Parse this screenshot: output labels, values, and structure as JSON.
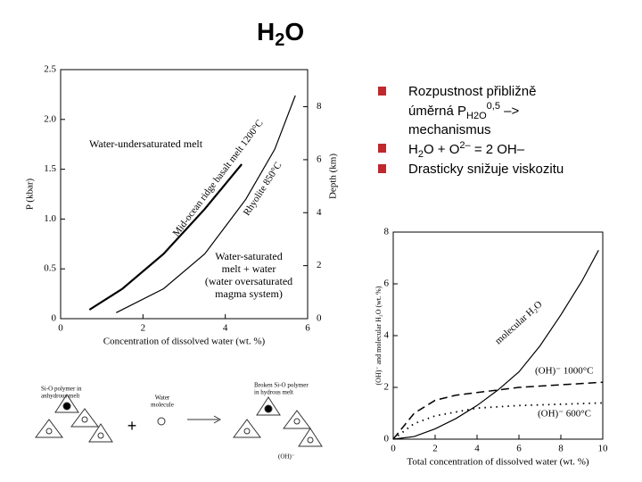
{
  "slide": {
    "title": [
      "H",
      "2",
      "O"
    ],
    "bullets": [
      {
        "line1": "Rozpustnost přibližně",
        "line2": "úměrná P",
        "sub": "H2O",
        "sup": "0,5",
        "tail": " –>",
        "line3": "mechanismus"
      },
      {
        "a": "H",
        "b": "2",
        "c": "O + O",
        "d": "2–",
        "e": " = 2 OH–"
      },
      {
        "text": "Drasticky snižuje viskozitu"
      }
    ]
  },
  "diagram": {
    "labels": [
      "Si-O polymer in",
      "anhydrous melt",
      "Water",
      "molecule",
      "Broken Si-O polymer",
      "in hydrous melt",
      "(OH)⁻",
      "+"
    ]
  },
  "chart_data": [
    {
      "type": "line",
      "xlabel": "Concentration of dissolved water (wt. %)",
      "ylabel": "P (kbar)",
      "y2label": "Depth (km)",
      "xlim": [
        0,
        6
      ],
      "xticks": [
        0,
        2,
        4,
        6
      ],
      "ylim": [
        0,
        2.5
      ],
      "yticks": [
        0,
        0.5,
        {
          "value": 1,
          "label": "1.0"
        },
        1.5,
        {
          "value": 2,
          "label": "2.0"
        },
        2.5
      ],
      "y2lim": [
        0,
        9.4
      ],
      "y2ticks": [
        0,
        2,
        4,
        6,
        8
      ],
      "series": [
        {
          "name": "Mid-ocean ridge basalt melt 1200°C",
          "color": "#000000",
          "x": [
            0.7,
            1.5,
            2.5,
            3.5,
            4.4
          ],
          "values": [
            0.09,
            0.3,
            0.65,
            1.1,
            1.55
          ]
        },
        {
          "name": "Rhyolite 850°C",
          "color": "#000000",
          "x": [
            1.35,
            2.5,
            3.5,
            4.5,
            5.2,
            5.7
          ],
          "values": [
            0.06,
            0.3,
            0.65,
            1.2,
            1.7,
            2.24
          ]
        }
      ],
      "annotations": [
        "Water-undersaturated melt",
        "Water-saturated",
        "melt + water",
        "(water oversaturated",
        "magma system)"
      ]
    },
    {
      "type": "line",
      "xlabel": "Total concentration of dissolved water (wt. %)",
      "ylabel": "(OH)⁻ and molecular H₂O (wt. %)",
      "xlim": [
        0,
        10
      ],
      "xticks": [
        0,
        2,
        4,
        6,
        8,
        10
      ],
      "ylim": [
        0,
        8
      ],
      "yticks": [
        0,
        2,
        4,
        6,
        8
      ],
      "series": [
        {
          "name": "molecular H₂O",
          "color": "#000000",
          "x": [
            0,
            1,
            2,
            3,
            4,
            5,
            6,
            7,
            8,
            9,
            9.8
          ],
          "values": [
            0,
            0.1,
            0.4,
            0.8,
            1.3,
            1.9,
            2.6,
            3.6,
            4.8,
            6.1,
            7.3
          ]
        },
        {
          "name": "(OH)⁻ 1000°C",
          "color": "#000000",
          "x": [
            0,
            1,
            2,
            3,
            4,
            6,
            8,
            10
          ],
          "values": [
            0,
            1.0,
            1.5,
            1.7,
            1.8,
            2.0,
            2.1,
            2.2
          ]
        },
        {
          "name": "(OH)⁻ 600°C",
          "color": "#000000",
          "x": [
            0,
            1,
            2,
            4,
            6,
            8,
            10
          ],
          "values": [
            0,
            0.6,
            0.9,
            1.2,
            1.3,
            1.35,
            1.4
          ]
        }
      ]
    }
  ]
}
